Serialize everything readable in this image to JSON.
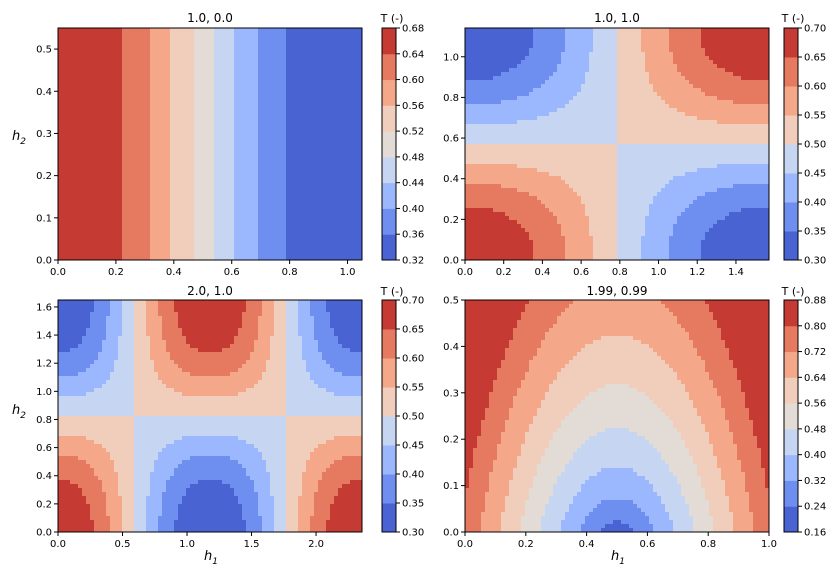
{
  "figure": {
    "y_axis_label": "h",
    "y_axis_label_sub": "2",
    "x_axis_label": "h",
    "x_axis_label_sub": "1"
  },
  "palette": [
    "#4a63d3",
    "#6e8ef0",
    "#9bb7fd",
    "#c6d5f2",
    "#e3dcd6",
    "#f1cdbb",
    "#f5a889",
    "#e57a61",
    "#c63a34"
  ],
  "chart_data": [
    {
      "type": "contour",
      "title": "1.0, 0.0",
      "xlim": [
        0,
        1.05
      ],
      "ylim": [
        0,
        0.55
      ],
      "x_ticks": [
        0.0,
        0.2,
        0.4,
        0.6,
        0.8,
        1.0
      ],
      "y_ticks": [
        0.0,
        0.1,
        0.2,
        0.3,
        0.4,
        0.5
      ],
      "x_tick_labels": [
        "0.0",
        "0.2",
        "0.4",
        "0.6",
        "0.8",
        "1.0"
      ],
      "y_tick_labels": [
        "0.0",
        "0.1",
        "0.2",
        "0.3",
        "0.4",
        "0.5"
      ],
      "colorbar": {
        "title": "T (-)",
        "levels": [
          0.32,
          0.36,
          0.4,
          0.44,
          0.48,
          0.52,
          0.56,
          0.6,
          0.64,
          0.68
        ],
        "tick_labels": [
          "0.32",
          "0.36",
          "0.40",
          "0.44",
          "0.48",
          "0.52",
          "0.56",
          "0.60",
          "0.64",
          "0.68"
        ]
      },
      "field": {
        "kind": "cosx",
        "a": 0.5,
        "b": 0.18,
        "L": 1.0
      }
    },
    {
      "type": "contour",
      "title": "1.0, 1.0",
      "xlim": [
        0,
        1.5708
      ],
      "ylim": [
        0,
        1.1416
      ],
      "x_ticks": [
        0.0,
        0.2,
        0.4,
        0.6,
        0.8,
        1.0,
        1.2,
        1.4
      ],
      "y_ticks": [
        0.0,
        0.2,
        0.4,
        0.6,
        0.8,
        1.0
      ],
      "x_tick_labels": [
        "0.0",
        "0.2",
        "0.4",
        "0.6",
        "0.8",
        "1.0",
        "1.2",
        "1.4"
      ],
      "y_tick_labels": [
        "0.0",
        "0.2",
        "0.4",
        "0.6",
        "0.8",
        "1.0"
      ],
      "colorbar": {
        "title": "T (-)",
        "levels": [
          0.3,
          0.35,
          0.4,
          0.45,
          0.5,
          0.55,
          0.6,
          0.65,
          0.7
        ],
        "tick_labels": [
          "0.30",
          "0.35",
          "0.40",
          "0.45",
          "0.50",
          "0.55",
          "0.60",
          "0.65",
          "0.70"
        ]
      },
      "field": {
        "kind": "cosxcosy",
        "a": 0.5,
        "b": 0.2,
        "kx": 2.0,
        "ky": 2.75
      }
    },
    {
      "type": "contour",
      "title": "2.0, 1.0",
      "xlim": [
        0,
        2.3562
      ],
      "ylim": [
        0,
        1.6493
      ],
      "x_ticks": [
        0.0,
        0.5,
        1.0,
        1.5,
        2.0
      ],
      "y_ticks": [
        0.0,
        0.2,
        0.4,
        0.6,
        0.8,
        1.0,
        1.2,
        1.4,
        1.6
      ],
      "x_tick_labels": [
        "0.0",
        "0.5",
        "1.0",
        "1.5",
        "2.0"
      ],
      "y_tick_labels": [
        "0.0",
        "0.2",
        "0.4",
        "0.6",
        "0.8",
        "1.0",
        "1.2",
        "1.4",
        "1.6"
      ],
      "colorbar": {
        "title": "T (-)",
        "levels": [
          0.3,
          0.35,
          0.4,
          0.45,
          0.5,
          0.55,
          0.6,
          0.65,
          0.7
        ],
        "tick_labels": [
          "0.30",
          "0.35",
          "0.40",
          "0.45",
          "0.50",
          "0.55",
          "0.60",
          "0.65",
          "0.70"
        ]
      },
      "field": {
        "kind": "cosxcosy",
        "a": 0.5,
        "b": 0.2,
        "kx": 2.6667,
        "ky": 1.905
      }
    },
    {
      "type": "contour",
      "title": "1.99, 0.99",
      "xlim": [
        0,
        1.0
      ],
      "ylim": [
        0,
        0.5
      ],
      "x_ticks": [
        0.0,
        0.2,
        0.4,
        0.6,
        0.8,
        1.0
      ],
      "y_ticks": [
        0.0,
        0.1,
        0.2,
        0.3,
        0.4,
        0.5
      ],
      "x_tick_labels": [
        "0.0",
        "0.2",
        "0.4",
        "0.6",
        "0.8",
        "1.0"
      ],
      "y_tick_labels": [
        "0.0",
        "0.1",
        "0.2",
        "0.3",
        "0.4",
        "0.5"
      ],
      "colorbar": {
        "title": "T (-)",
        "levels": [
          0.16,
          0.24,
          0.32,
          0.4,
          0.48,
          0.56,
          0.64,
          0.72,
          0.8,
          0.88
        ],
        "tick_labels": [
          "0.16",
          "0.24",
          "0.32",
          "0.40",
          "0.48",
          "0.56",
          "0.64",
          "0.72",
          "0.80",
          "0.88"
        ]
      },
      "field": {
        "kind": "wedge",
        "min": 0.17,
        "max": 0.89,
        "cx": 0.5
      }
    }
  ]
}
